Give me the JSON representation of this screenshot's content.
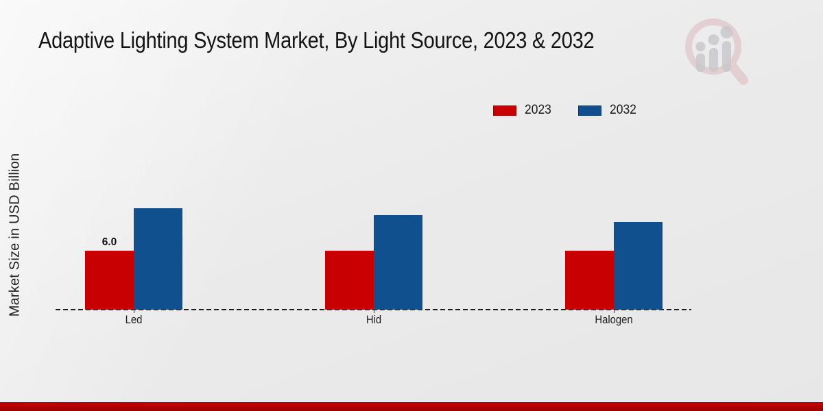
{
  "title": "Adaptive Lighting System Market, By Light Source, 2023 & 2032",
  "ylabel": "Market Size in USD Billion",
  "watermark_logo": "magnifier-bar-chart-logo",
  "colors": {
    "series_2023": "#C90001",
    "series_2032": "#10508E",
    "footer_band": "#B30000",
    "background": "#ECECEC",
    "baseline": "#1C1C1C"
  },
  "legend": {
    "position": "top-right",
    "items": [
      {
        "label": "2023",
        "color": "#C90001"
      },
      {
        "label": "2032",
        "color": "#10508E"
      }
    ]
  },
  "chart_data": {
    "type": "bar",
    "title": "Adaptive Lighting System Market, By Light Source, 2023 & 2032",
    "xlabel": "",
    "ylabel": "Market Size in USD Billion",
    "categories": [
      "Led",
      "Hid",
      "Halogen"
    ],
    "series": [
      {
        "name": "2023",
        "color": "#C90001",
        "values": [
          6.0,
          6.0,
          6.0
        ]
      },
      {
        "name": "2032",
        "color": "#10508E",
        "values": [
          10.3,
          9.6,
          8.9
        ]
      }
    ],
    "bar_labels": [
      {
        "series": "2023",
        "category": "Led",
        "text": "6.0"
      }
    ],
    "ylim": [
      0,
      12
    ],
    "grid": false,
    "legend_position": "top-right",
    "baseline_style": "dashed"
  }
}
